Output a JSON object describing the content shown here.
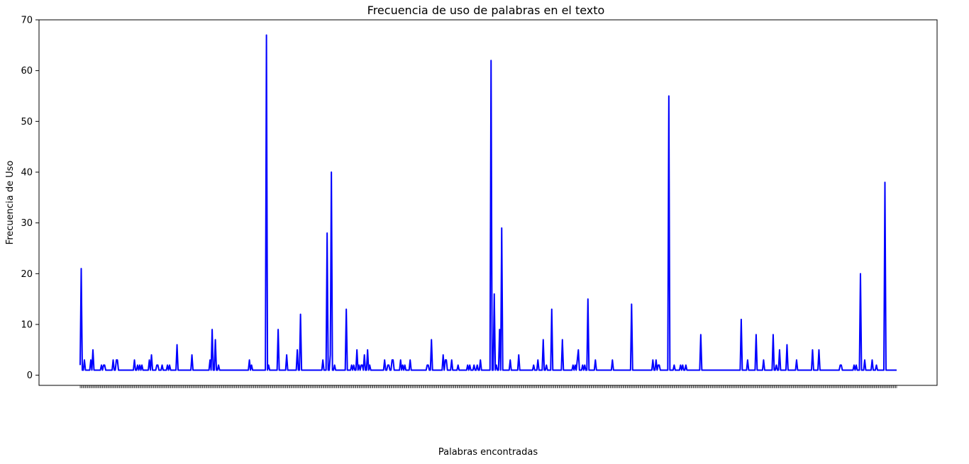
{
  "chart_data": {
    "type": "line",
    "title": "Frecuencia de uso de palabras en el texto",
    "xlabel": "Palabras encontradas",
    "ylabel": "Frecuencia de Uso",
    "ylim": [
      -2,
      70
    ],
    "yticks": [
      0,
      10,
      20,
      30,
      40,
      50,
      60,
      70
    ],
    "grid": false,
    "legend": "none",
    "line_color": "#0000ff",
    "series": [
      {
        "values": [
          2,
          21,
          1,
          1,
          3,
          1,
          1,
          1,
          1,
          1,
          3,
          1,
          5,
          1,
          1,
          1,
          1,
          1,
          1,
          1,
          2,
          1,
          2,
          2,
          1,
          1,
          1,
          1,
          1,
          1,
          1,
          3,
          1,
          1,
          3,
          3,
          1,
          1,
          1,
          1,
          1,
          1,
          1,
          1,
          1,
          1,
          1,
          1,
          1,
          1,
          1,
          3,
          1,
          1,
          2,
          1,
          2,
          1,
          2,
          1,
          1,
          1,
          1,
          1,
          1,
          3,
          1,
          4,
          1,
          1,
          1,
          1,
          2,
          2,
          1,
          1,
          1,
          2,
          1,
          1,
          1,
          1,
          2,
          1,
          2,
          1,
          1,
          1,
          1,
          1,
          1,
          6,
          1,
          1,
          1,
          1,
          1,
          1,
          1,
          1,
          1,
          1,
          1,
          1,
          1,
          4,
          1,
          1,
          1,
          1,
          1,
          1,
          1,
          1,
          1,
          1,
          1,
          1,
          1,
          1,
          1,
          1,
          3,
          1,
          9,
          1,
          1,
          7,
          1,
          1,
          2,
          1,
          1,
          1,
          1,
          1,
          1,
          1,
          1,
          1,
          1,
          1,
          1,
          1,
          1,
          1,
          1,
          1,
          1,
          1,
          1,
          1,
          1,
          1,
          1,
          1,
          1,
          1,
          1,
          3,
          1,
          2,
          1,
          1,
          1,
          1,
          1,
          1,
          1,
          1,
          1,
          1,
          1,
          1,
          1,
          67,
          1,
          2,
          1,
          1,
          1,
          1,
          1,
          1,
          1,
          1,
          9,
          1,
          1,
          1,
          1,
          1,
          1,
          1,
          4,
          1,
          1,
          1,
          1,
          1,
          1,
          1,
          1,
          1,
          5,
          1,
          1,
          12,
          1,
          1,
          1,
          1,
          1,
          1,
          1,
          1,
          1,
          1,
          1,
          1,
          1,
          1,
          1,
          1,
          1,
          1,
          1,
          1,
          3,
          1,
          1,
          1,
          28,
          1,
          1,
          4,
          40,
          1,
          1,
          2,
          1,
          1,
          1,
          1,
          1,
          1,
          1,
          1,
          1,
          1,
          13,
          1,
          1,
          1,
          1,
          2,
          1,
          2,
          1,
          1,
          5,
          1,
          2,
          1,
          2,
          2,
          1,
          4,
          1,
          1,
          5,
          1,
          2,
          1,
          1,
          1,
          1,
          1,
          1,
          1,
          1,
          1,
          1,
          1,
          1,
          1,
          3,
          1,
          1,
          2,
          2,
          1,
          1,
          3,
          3,
          1,
          1,
          1,
          1,
          1,
          1,
          3,
          1,
          2,
          1,
          2,
          1,
          1,
          1,
          1,
          3,
          1,
          1,
          1,
          1,
          1,
          1,
          1,
          1,
          1,
          1,
          1,
          1,
          1,
          1,
          1,
          2,
          2,
          1,
          1,
          7,
          1,
          1,
          1,
          1,
          1,
          1,
          1,
          1,
          1,
          1,
          4,
          1,
          3,
          3,
          1,
          1,
          1,
          1,
          3,
          1,
          1,
          1,
          1,
          1,
          2,
          1,
          1,
          1,
          1,
          1,
          1,
          1,
          1,
          2,
          1,
          2,
          1,
          1,
          1,
          2,
          1,
          1,
          2,
          1,
          1,
          3,
          1,
          1,
          1,
          1,
          1,
          1,
          1,
          1,
          1,
          62,
          1,
          1,
          16,
          1,
          2,
          1,
          1,
          9,
          1,
          29,
          1,
          1,
          1,
          1,
          1,
          1,
          1,
          3,
          1,
          1,
          1,
          1,
          1,
          1,
          1,
          4,
          1,
          1,
          1,
          1,
          1,
          1,
          1,
          1,
          1,
          1,
          1,
          1,
          1,
          2,
          1,
          1,
          1,
          3,
          1,
          1,
          1,
          1,
          7,
          1,
          1,
          2,
          1,
          1,
          1,
          1,
          13,
          1,
          1,
          1,
          1,
          1,
          1,
          1,
          1,
          1,
          7,
          1,
          1,
          1,
          1,
          1,
          1,
          1,
          1,
          1,
          2,
          1,
          2,
          1,
          3,
          5,
          1,
          1,
          1,
          2,
          1,
          2,
          1,
          1,
          15,
          1,
          1,
          1,
          1,
          1,
          1,
          3,
          1,
          1,
          1,
          1,
          1,
          1,
          1,
          1,
          1,
          1,
          1,
          1,
          1,
          1,
          1,
          3,
          1,
          1,
          1,
          1,
          1,
          1,
          1,
          1,
          1,
          1,
          1,
          1,
          1,
          1,
          1,
          1,
          1,
          14,
          1,
          1,
          1,
          1,
          1,
          1,
          1,
          1,
          1,
          1,
          1,
          1,
          1,
          1,
          1,
          1,
          1,
          1,
          1,
          3,
          1,
          1,
          3,
          1,
          2,
          2,
          1,
          1,
          1,
          1,
          1,
          1,
          1,
          1,
          55,
          1,
          1,
          1,
          1,
          2,
          1,
          1,
          1,
          1,
          1,
          2,
          1,
          2,
          1,
          1,
          2,
          1,
          1,
          1,
          1,
          1,
          1,
          1,
          1,
          1,
          1,
          1,
          1,
          1,
          8,
          1,
          1,
          1,
          1,
          1,
          1,
          1,
          1,
          1,
          1,
          1,
          1,
          1,
          1,
          1,
          1,
          1,
          1,
          1,
          1,
          1,
          1,
          1,
          1,
          1,
          1,
          1,
          1,
          1,
          1,
          1,
          1,
          1,
          1,
          1,
          1,
          1,
          11,
          1,
          1,
          1,
          1,
          1,
          3,
          1,
          1,
          1,
          1,
          1,
          1,
          1,
          8,
          1,
          1,
          1,
          1,
          1,
          1,
          3,
          1,
          1,
          1,
          1,
          1,
          1,
          1,
          1,
          8,
          1,
          1,
          2,
          1,
          1,
          5,
          1,
          1,
          1,
          1,
          1,
          1,
          6,
          1,
          1,
          1,
          1,
          1,
          1,
          1,
          1,
          3,
          1,
          1,
          1,
          1,
          1,
          1,
          1,
          1,
          1,
          1,
          1,
          1,
          1,
          1,
          5,
          1,
          1,
          1,
          1,
          1,
          5,
          1,
          1,
          1,
          1,
          1,
          1,
          1,
          1,
          1,
          1,
          1,
          1,
          1,
          1,
          1,
          1,
          1,
          1,
          1,
          2,
          2,
          1,
          1,
          1,
          1,
          1,
          1,
          1,
          1,
          1,
          1,
          1,
          2,
          1,
          2,
          1,
          1,
          1,
          20,
          1,
          1,
          1,
          3,
          1,
          1,
          1,
          1,
          1,
          1,
          3,
          1,
          1,
          1,
          2,
          1,
          1,
          1,
          1,
          1,
          1,
          1,
          38,
          1,
          1,
          1,
          1,
          1,
          1,
          1,
          1,
          1,
          1,
          1
        ]
      }
    ]
  }
}
